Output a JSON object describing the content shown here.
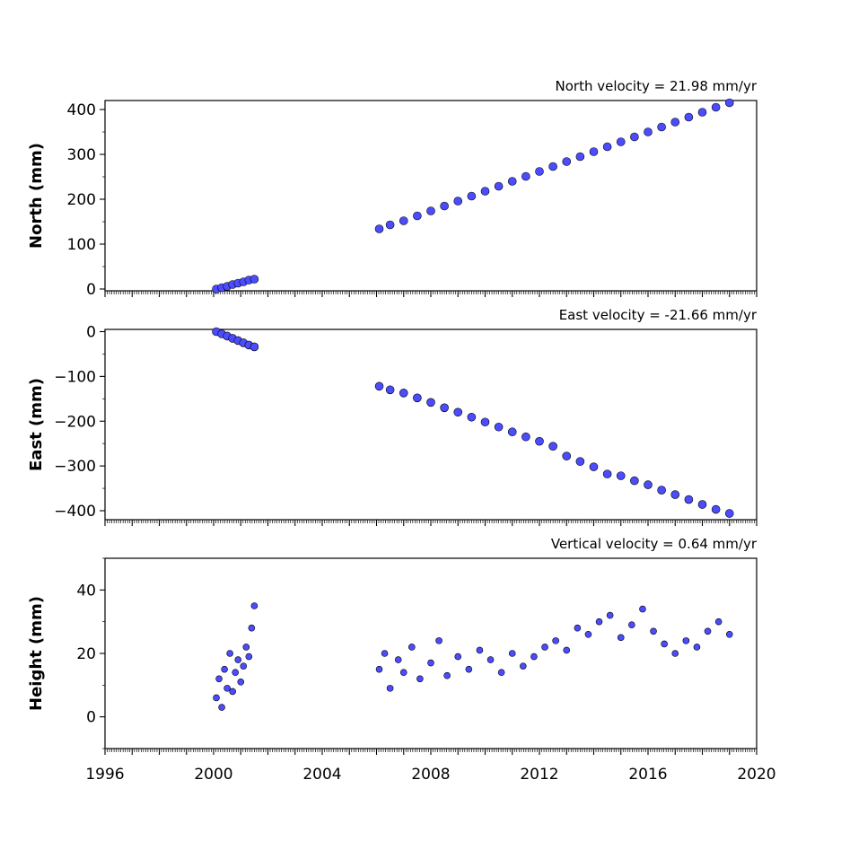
{
  "chart_data": [
    {
      "type": "scatter",
      "title": "North velocity = 21.98 mm/yr",
      "xlabel": "",
      "ylabel": "North (mm)",
      "xlim": [
        1996,
        2020
      ],
      "ylim": [
        -4,
        420
      ],
      "yticks": [
        0,
        100,
        200,
        300,
        400
      ],
      "marker_color": "#4c4cff",
      "marker_edge": "#000000",
      "series": [
        {
          "values": [
            [
              2000.1,
              0
            ],
            [
              2000.3,
              3
            ],
            [
              2000.5,
              6
            ],
            [
              2000.7,
              10
            ],
            [
              2000.9,
              13
            ],
            [
              2001.1,
              16
            ],
            [
              2001.3,
              20
            ],
            [
              2001.5,
              22
            ],
            [
              2006.1,
              134
            ],
            [
              2006.5,
              143
            ],
            [
              2007.0,
              152
            ],
            [
              2007.5,
              163
            ],
            [
              2008.0,
              174
            ],
            [
              2008.5,
              185
            ],
            [
              2009.0,
              196
            ],
            [
              2009.5,
              207
            ],
            [
              2010.0,
              218
            ],
            [
              2010.5,
              229
            ],
            [
              2011.0,
              240
            ],
            [
              2011.5,
              251
            ],
            [
              2012.0,
              262
            ],
            [
              2012.5,
              273
            ],
            [
              2013.0,
              284
            ],
            [
              2013.5,
              295
            ],
            [
              2014.0,
              306
            ],
            [
              2014.5,
              317
            ],
            [
              2015.0,
              328
            ],
            [
              2015.5,
              339
            ],
            [
              2016.0,
              350
            ],
            [
              2016.5,
              361
            ],
            [
              2017.0,
              372
            ],
            [
              2017.5,
              383
            ],
            [
              2018.0,
              394
            ],
            [
              2018.5,
              405
            ],
            [
              2019.0,
              415
            ]
          ]
        }
      ]
    },
    {
      "type": "scatter",
      "title": "East velocity = -21.66 mm/yr",
      "xlabel": "",
      "ylabel": "East (mm)",
      "xlim": [
        1996,
        2020
      ],
      "ylim": [
        -420,
        5
      ],
      "yticks": [
        0,
        -100,
        -200,
        -300,
        -400
      ],
      "marker_color": "#4c4cff",
      "marker_edge": "#000000",
      "series": [
        {
          "values": [
            [
              2000.1,
              0
            ],
            [
              2000.3,
              -5
            ],
            [
              2000.5,
              -10
            ],
            [
              2000.7,
              -15
            ],
            [
              2000.9,
              -20
            ],
            [
              2001.1,
              -25
            ],
            [
              2001.3,
              -30
            ],
            [
              2001.5,
              -34
            ],
            [
              2006.1,
              -122
            ],
            [
              2006.5,
              -130
            ],
            [
              2007.0,
              -137
            ],
            [
              2007.5,
              -148
            ],
            [
              2008.0,
              -158
            ],
            [
              2008.5,
              -170
            ],
            [
              2009.0,
              -180
            ],
            [
              2009.5,
              -191
            ],
            [
              2010.0,
              -202
            ],
            [
              2010.5,
              -213
            ],
            [
              2011.0,
              -224
            ],
            [
              2011.5,
              -235
            ],
            [
              2012.0,
              -245
            ],
            [
              2012.5,
              -256
            ],
            [
              2013.0,
              -278
            ],
            [
              2013.5,
              -290
            ],
            [
              2014.0,
              -302
            ],
            [
              2014.5,
              -318
            ],
            [
              2015.0,
              -322
            ],
            [
              2015.5,
              -333
            ],
            [
              2016.0,
              -342
            ],
            [
              2016.5,
              -354
            ],
            [
              2017.0,
              -364
            ],
            [
              2017.5,
              -375
            ],
            [
              2018.0,
              -386
            ],
            [
              2018.5,
              -397
            ],
            [
              2019.0,
              -406
            ]
          ]
        }
      ]
    },
    {
      "type": "scatter",
      "title": "Vertical velocity = 0.64 mm/yr",
      "xlabel": "",
      "ylabel": "Height (mm)",
      "xlim": [
        1996,
        2020
      ],
      "ylim": [
        -10,
        50
      ],
      "yticks": [
        0,
        20,
        40
      ],
      "xticks": [
        1996,
        2000,
        2004,
        2008,
        2012,
        2016,
        2020
      ],
      "marker_color": "#4c4cff",
      "marker_edge": "#000000",
      "series": [
        {
          "values": [
            [
              2000.1,
              6
            ],
            [
              2000.2,
              12
            ],
            [
              2000.3,
              3
            ],
            [
              2000.4,
              15
            ],
            [
              2000.5,
              9
            ],
            [
              2000.6,
              20
            ],
            [
              2000.7,
              8
            ],
            [
              2000.8,
              14
            ],
            [
              2000.9,
              18
            ],
            [
              2001.0,
              11
            ],
            [
              2001.1,
              16
            ],
            [
              2001.2,
              22
            ],
            [
              2001.3,
              19
            ],
            [
              2001.4,
              28
            ],
            [
              2001.5,
              35
            ],
            [
              2006.1,
              15
            ],
            [
              2006.3,
              20
            ],
            [
              2006.5,
              9
            ],
            [
              2006.8,
              18
            ],
            [
              2007.0,
              14
            ],
            [
              2007.3,
              22
            ],
            [
              2007.6,
              12
            ],
            [
              2008.0,
              17
            ],
            [
              2008.3,
              24
            ],
            [
              2008.6,
              13
            ],
            [
              2009.0,
              19
            ],
            [
              2009.4,
              15
            ],
            [
              2009.8,
              21
            ],
            [
              2010.2,
              18
            ],
            [
              2010.6,
              14
            ],
            [
              2011.0,
              20
            ],
            [
              2011.4,
              16
            ],
            [
              2011.8,
              19
            ],
            [
              2012.2,
              22
            ],
            [
              2012.6,
              24
            ],
            [
              2013.0,
              21
            ],
            [
              2013.4,
              28
            ],
            [
              2013.8,
              26
            ],
            [
              2014.2,
              30
            ],
            [
              2014.6,
              32
            ],
            [
              2015.0,
              25
            ],
            [
              2015.4,
              29
            ],
            [
              2015.8,
              34
            ],
            [
              2016.2,
              27
            ],
            [
              2016.6,
              23
            ],
            [
              2017.0,
              20
            ],
            [
              2017.4,
              24
            ],
            [
              2017.8,
              22
            ],
            [
              2018.2,
              27
            ],
            [
              2018.6,
              30
            ],
            [
              2019.0,
              26
            ]
          ]
        }
      ]
    }
  ]
}
